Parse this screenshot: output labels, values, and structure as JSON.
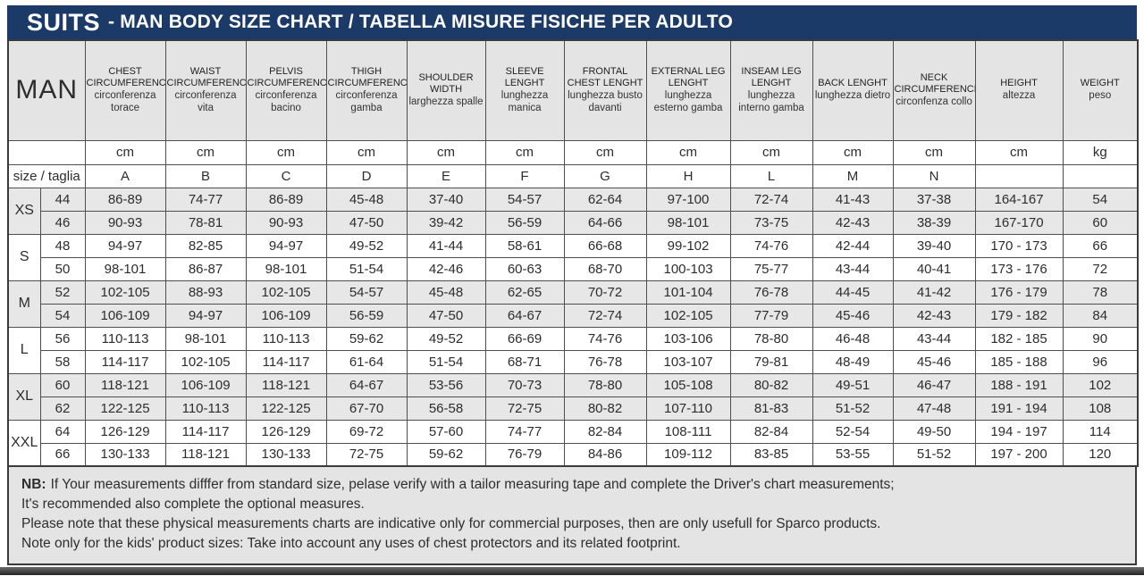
{
  "title": {
    "brand": "SUITS",
    "text": "- MAN BODY SIZE CHART / TABELLA MISURE FISICHE PER ADULTO"
  },
  "colors": {
    "accent_navy": "#1c3a68",
    "header_bg": "#e4e4e4",
    "row_shade": "#e7e7e7",
    "notes_bg": "#e4e4e4"
  },
  "table": {
    "corner_label": "MAN",
    "size_row_label": "size / taglia",
    "columns": [
      {
        "en": "CHEST CIRCUMFERENCE",
        "it": "circonferenza torace",
        "unit": "cm",
        "letter": "A"
      },
      {
        "en": "WAIST CIRCUMFERENCE",
        "it": "circonferenza vita",
        "unit": "cm",
        "letter": "B"
      },
      {
        "en": "PELVIS CIRCUMFERENCE",
        "it": "circonferenza bacino",
        "unit": "cm",
        "letter": "C"
      },
      {
        "en": "THIGH CIRCUMFERENCE",
        "it": "circonferenza gamba",
        "unit": "cm",
        "letter": "D"
      },
      {
        "en": "SHOULDER WIDTH",
        "it": "larghezza spalle",
        "unit": "cm",
        "letter": "E"
      },
      {
        "en": "SLEEVE LENGHT",
        "it": "lunghezza manica",
        "unit": "cm",
        "letter": "F"
      },
      {
        "en": "FRONTAL CHEST LENGHT",
        "it": "lunghezza busto davanti",
        "unit": "cm",
        "letter": "G"
      },
      {
        "en": "EXTERNAL LEG LENGHT",
        "it": "lunghezza esterno gamba",
        "unit": "cm",
        "letter": "H"
      },
      {
        "en": "INSEAM LEG LENGHT",
        "it": "lunghezza interno gamba",
        "unit": "cm",
        "letter": "L"
      },
      {
        "en": "BACK LENGHT",
        "it": "lunghezza dietro",
        "unit": "cm",
        "letter": "M"
      },
      {
        "en": "NECK CIRCUMFERENCE",
        "it": "circonfenza collo",
        "unit": "cm",
        "letter": "N"
      },
      {
        "en": "HEIGHT",
        "it": "altezza",
        "unit": "cm",
        "letter": ""
      },
      {
        "en": "WEIGHT",
        "it": "peso",
        "unit": "kg",
        "letter": ""
      }
    ],
    "groups": [
      {
        "label": "XS",
        "rows": [
          {
            "size": "44",
            "values": [
              "86-89",
              "74-77",
              "86-89",
              "45-48",
              "37-40",
              "54-57",
              "62-64",
              "97-100",
              "72-74",
              "41-43",
              "37-38",
              "164-167",
              "54"
            ]
          },
          {
            "size": "46",
            "values": [
              "90-93",
              "78-81",
              "90-93",
              "47-50",
              "39-42",
              "56-59",
              "64-66",
              "98-101",
              "73-75",
              "42-43",
              "38-39",
              "167-170",
              "60"
            ]
          }
        ]
      },
      {
        "label": "S",
        "rows": [
          {
            "size": "48",
            "values": [
              "94-97",
              "82-85",
              "94-97",
              "49-52",
              "41-44",
              "58-61",
              "66-68",
              "99-102",
              "74-76",
              "42-44",
              "39-40",
              "170 - 173",
              "66"
            ]
          },
          {
            "size": "50",
            "values": [
              "98-101",
              "86-87",
              "98-101",
              "51-54",
              "42-46",
              "60-63",
              "68-70",
              "100-103",
              "75-77",
              "43-44",
              "40-41",
              "173 - 176",
              "72"
            ]
          }
        ]
      },
      {
        "label": "M",
        "rows": [
          {
            "size": "52",
            "values": [
              "102-105",
              "88-93",
              "102-105",
              "54-57",
              "45-48",
              "62-65",
              "70-72",
              "101-104",
              "76-78",
              "44-45",
              "41-42",
              "176 - 179",
              "78"
            ]
          },
          {
            "size": "54",
            "values": [
              "106-109",
              "94-97",
              "106-109",
              "56-59",
              "47-50",
              "64-67",
              "72-74",
              "102-105",
              "77-79",
              "45-46",
              "42-43",
              "179 - 182",
              "84"
            ]
          }
        ]
      },
      {
        "label": "L",
        "rows": [
          {
            "size": "56",
            "values": [
              "110-113",
              "98-101",
              "110-113",
              "59-62",
              "49-52",
              "66-69",
              "74-76",
              "103-106",
              "78-80",
              "46-48",
              "43-44",
              "182 - 185",
              "90"
            ]
          },
          {
            "size": "58",
            "values": [
              "114-117",
              "102-105",
              "114-117",
              "61-64",
              "51-54",
              "68-71",
              "76-78",
              "103-107",
              "79-81",
              "48-49",
              "45-46",
              "185 - 188",
              "96"
            ]
          }
        ]
      },
      {
        "label": "XL",
        "rows": [
          {
            "size": "60",
            "values": [
              "118-121",
              "106-109",
              "118-121",
              "64-67",
              "53-56",
              "70-73",
              "78-80",
              "105-108",
              "80-82",
              "49-51",
              "46-47",
              "188 - 191",
              "102"
            ]
          },
          {
            "size": "62",
            "values": [
              "122-125",
              "110-113",
              "122-125",
              "67-70",
              "56-58",
              "72-75",
              "80-82",
              "107-110",
              "81-83",
              "51-52",
              "47-48",
              "191 - 194",
              "108"
            ]
          }
        ]
      },
      {
        "label": "XXL",
        "rows": [
          {
            "size": "64",
            "values": [
              "126-129",
              "114-117",
              "126-129",
              "69-72",
              "57-60",
              "74-77",
              "82-84",
              "108-111",
              "82-84",
              "52-54",
              "49-50",
              "194 - 197",
              "114"
            ]
          },
          {
            "size": "66",
            "values": [
              "130-133",
              "118-121",
              "130-133",
              "72-75",
              "59-62",
              "76-79",
              "84-86",
              "109-112",
              "83-85",
              "53-55",
              "51-52",
              "197 - 200",
              "120"
            ]
          }
        ]
      }
    ]
  },
  "notes": {
    "nb_label": "NB:",
    "lines": [
      "If Your measurements difffer from standard size, pelase verify with a tailor measuring tape and complete the Driver's chart measurements;",
      "It's recommended also complete the optional measures.",
      "Please note that these physical measurements charts are indicative only for commercial purposes, then are only usefull for Sparco products.",
      "Note only for the kids' product sizes: Take into account any uses of chest protectors and its related footprint."
    ]
  }
}
